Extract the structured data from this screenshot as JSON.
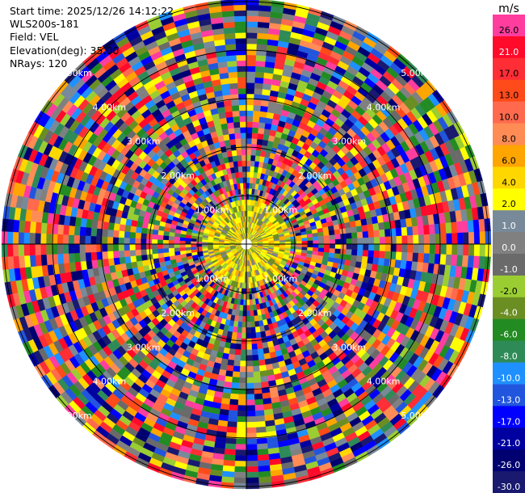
{
  "info": {
    "start_time": "Start time: 2025/12/26 14:12:22",
    "instrument": "WLS200s-181",
    "field": "Field: VEL",
    "elevation": "Elevation(deg): 35.00",
    "nrays": "NRays: 120"
  },
  "colorbar": {
    "unit": "m/s",
    "levels": [
      {
        "label": "26.0",
        "color": "#ff3d9e"
      },
      {
        "label": "21.0",
        "color": "#ff0a2a"
      },
      {
        "label": "17.0",
        "color": "#ff2d35"
      },
      {
        "label": "13.0",
        "color": "#ff4a1a"
      },
      {
        "label": "10.0",
        "color": "#ff6a4e"
      },
      {
        "label": "8.0",
        "color": "#ff8c55"
      },
      {
        "label": "6.0",
        "color": "#ffa500"
      },
      {
        "label": "4.0",
        "color": "#ffd700"
      },
      {
        "label": "2.0",
        "color": "#ffff00"
      },
      {
        "label": "1.0",
        "color": "#78899a"
      },
      {
        "label": "0.0",
        "color": "#808080"
      },
      {
        "label": "-1.0",
        "color": "#6a6a6a"
      },
      {
        "label": "-2.0",
        "color": "#9acd32"
      },
      {
        "label": "-4.0",
        "color": "#6b8e23"
      },
      {
        "label": "-6.0",
        "color": "#228b22"
      },
      {
        "label": "-8.0",
        "color": "#2e8b57"
      },
      {
        "label": "-10.0",
        "color": "#1e90ff"
      },
      {
        "label": "-13.0",
        "color": "#2255dd"
      },
      {
        "label": "-17.0",
        "color": "#0000ff"
      },
      {
        "label": "-21.0",
        "color": "#0000a0"
      },
      {
        "label": "-26.0",
        "color": "#000070"
      },
      {
        "label": "-30.0",
        "color": "#191970"
      }
    ]
  },
  "chart_data": {
    "type": "polar-ppi",
    "field": "VEL",
    "unit": "m/s",
    "nrays": 120,
    "elevation_deg": 35.0,
    "ring_labels": [
      "1.00km",
      "2.00km",
      "3.00km",
      "4.00km",
      "5.00km"
    ],
    "color_scale": [
      26.0,
      21.0,
      17.0,
      13.0,
      10.0,
      8.0,
      6.0,
      4.0,
      2.0,
      1.0,
      0.0,
      -1.0,
      -2.0,
      -4.0,
      -6.0,
      -8.0,
      -10.0,
      -13.0,
      -17.0,
      -21.0,
      -26.0,
      -30.0
    ]
  }
}
